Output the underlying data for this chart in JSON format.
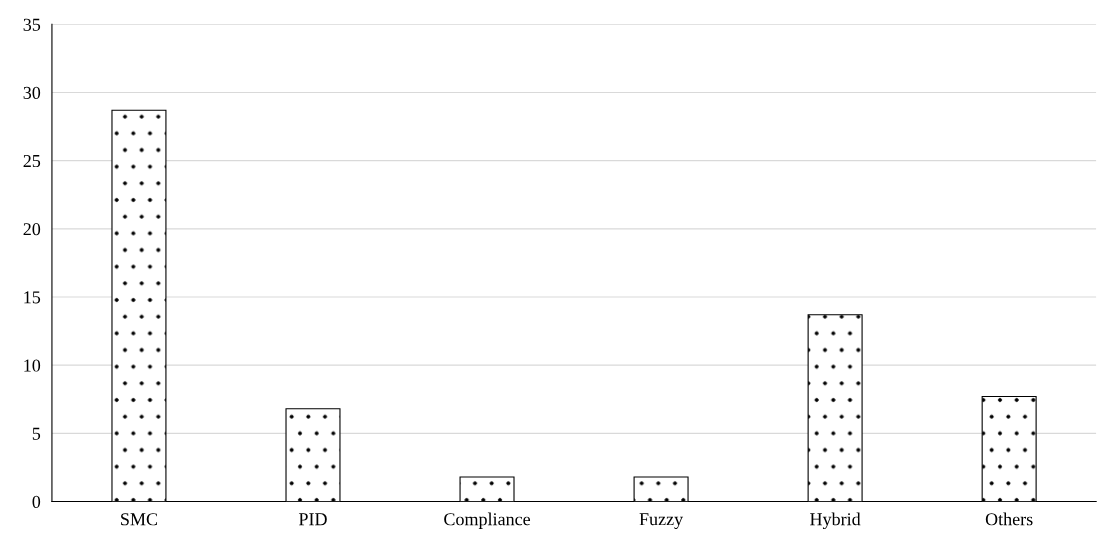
{
  "chart_data": {
    "type": "bar",
    "categories": [
      "SMC",
      "PID",
      "Compliance",
      "Fuzzy",
      "Hybrid",
      "Others"
    ],
    "values": [
      28.7,
      6.8,
      1.8,
      1.8,
      13.7,
      7.7
    ],
    "color": "#ffffff",
    "ylim": [
      0,
      35
    ],
    "yticks": [
      0,
      5,
      10,
      15,
      20,
      25,
      30,
      35
    ],
    "grid": "y",
    "legend": false
  }
}
